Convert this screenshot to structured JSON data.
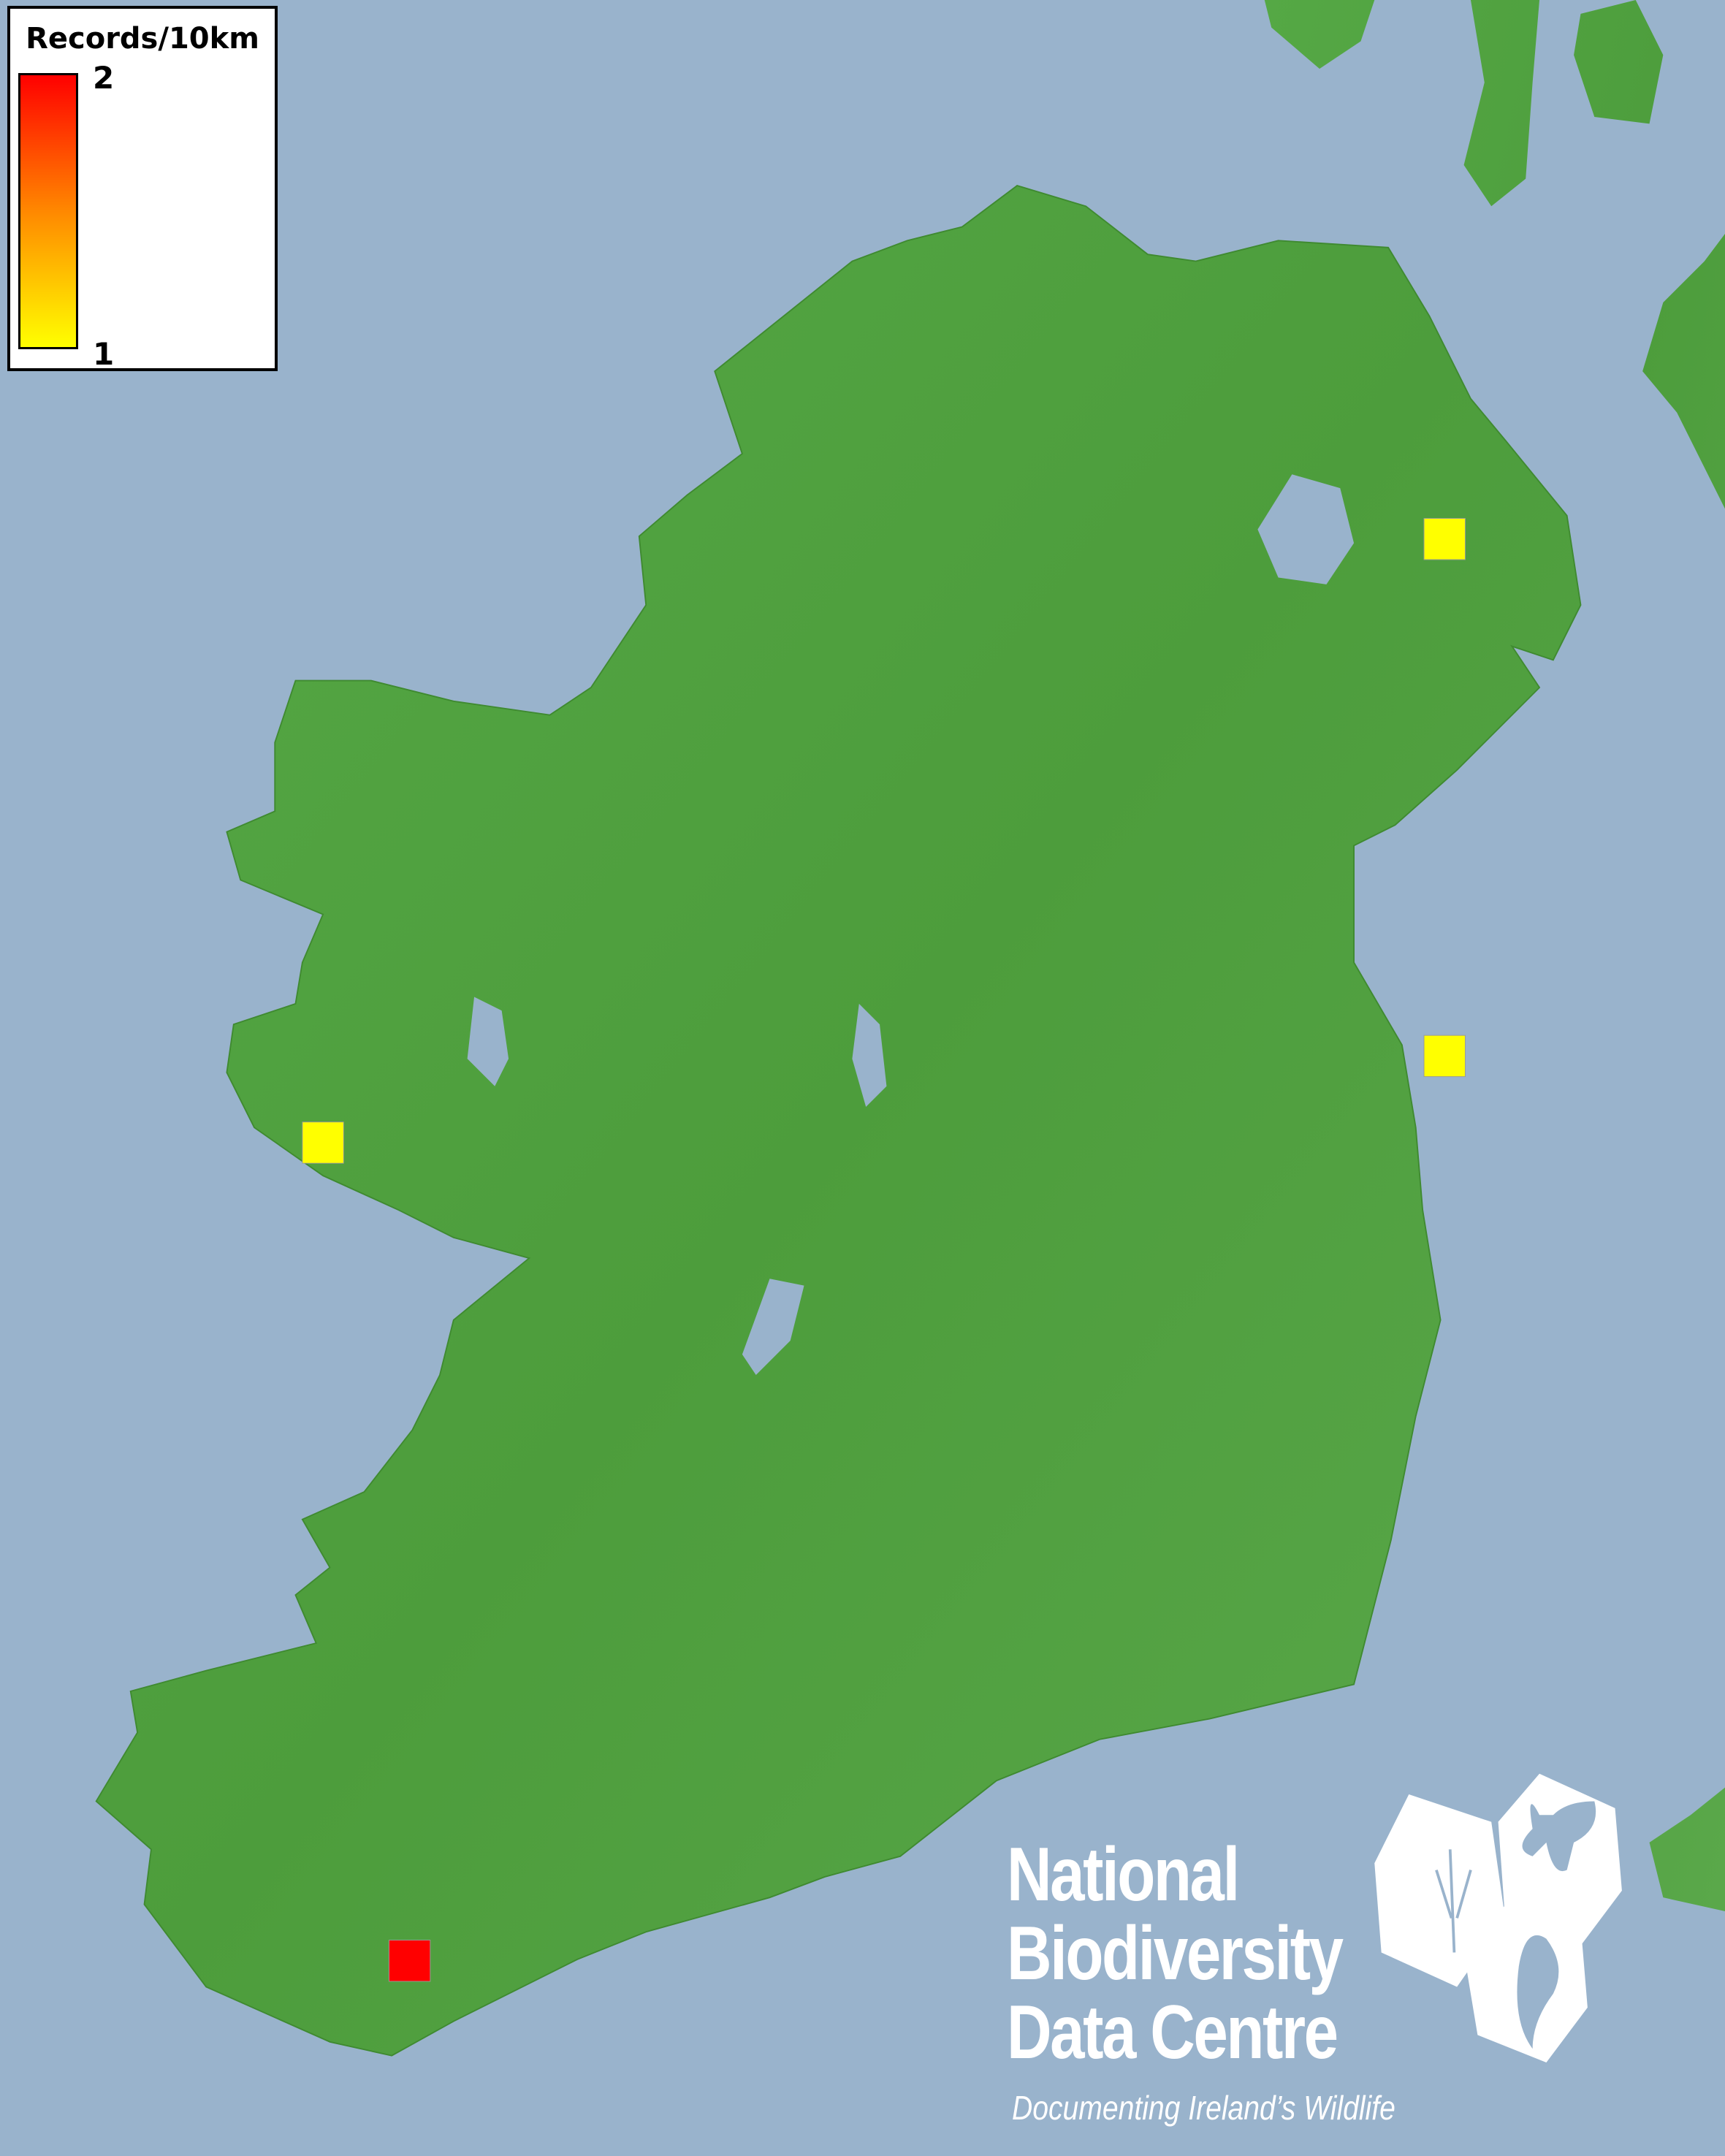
{
  "legend": {
    "title": "Records/10km",
    "max_label": "2",
    "min_label": "1",
    "gradient_colors": [
      "#ff0000",
      "#ff8800",
      "#ffff00"
    ]
  },
  "map": {
    "sea_color": "#99b3cc",
    "land_color": "#4d9e3a",
    "records": [
      {
        "value": 1,
        "color": "#ffff00"
      },
      {
        "value": 1,
        "color": "#ffff00"
      },
      {
        "value": 1,
        "color": "#ffff00"
      },
      {
        "value": 2,
        "color": "#ff0000"
      }
    ]
  },
  "logo": {
    "line1": "National",
    "line2": "Biodiversity",
    "line3": "Data Centre",
    "tagline": "Documenting Ireland’s Wildlife"
  }
}
